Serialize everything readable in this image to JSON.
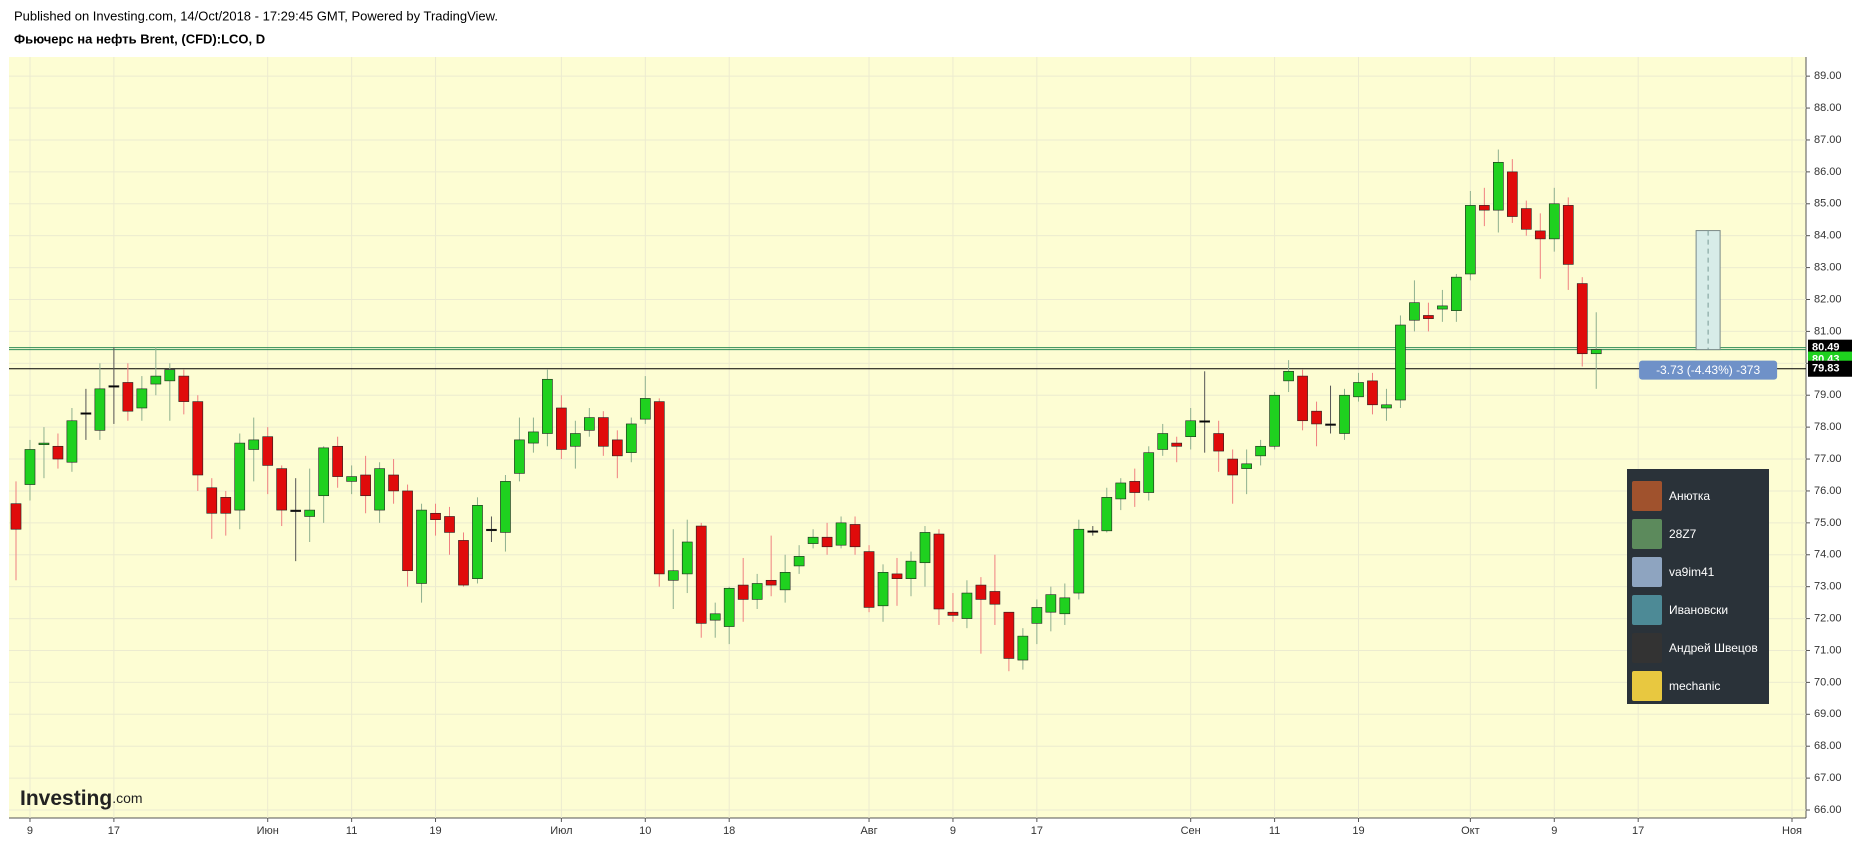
{
  "chart_data": {
    "type": "candlestick",
    "subtitle": "Published on Investing.com, 14/Oct/2018 - 17:29:45 GMT, Powered by TradingView.",
    "title": "Фьючерс на нефть Brent, (CFD):LCO, D",
    "watermark": {
      "brand": "Investing",
      "suffix": ".com"
    },
    "up_color": "#1fd11f",
    "down_color": "#e00b0b",
    "grid": true,
    "xlim": [
      -0.5,
      128
    ],
    "xticks": [
      {
        "value": 1,
        "label": "9"
      },
      {
        "value": 7,
        "label": "17"
      },
      {
        "value": 18,
        "label": "Июн"
      },
      {
        "value": 24,
        "label": "11"
      },
      {
        "value": 30,
        "label": "19"
      },
      {
        "value": 39,
        "label": "Июл"
      },
      {
        "value": 45,
        "label": "10"
      },
      {
        "value": 51,
        "label": "18"
      },
      {
        "value": 61,
        "label": "Авг"
      },
      {
        "value": 67,
        "label": "9"
      },
      {
        "value": 73,
        "label": "17"
      },
      {
        "value": 84,
        "label": "Сен"
      },
      {
        "value": 90,
        "label": "11"
      },
      {
        "value": 96,
        "label": "19"
      },
      {
        "value": 104,
        "label": "Окт"
      },
      {
        "value": 110,
        "label": "9"
      },
      {
        "value": 116,
        "label": "17"
      },
      {
        "value": 127,
        "label": "Ноя"
      }
    ],
    "ylim": [
      65.75,
      89.6
    ],
    "yticks": [
      {
        "value": 66,
        "label": "66.00"
      },
      {
        "value": 67,
        "label": "67.00"
      },
      {
        "value": 68,
        "label": "68.00"
      },
      {
        "value": 69,
        "label": "69.00"
      },
      {
        "value": 70,
        "label": "70.00"
      },
      {
        "value": 71,
        "label": "71.00"
      },
      {
        "value": 72,
        "label": "72.00"
      },
      {
        "value": 73,
        "label": "73.00"
      },
      {
        "value": 74,
        "label": "74.00"
      },
      {
        "value": 75,
        "label": "75.00"
      },
      {
        "value": 76,
        "label": "76.00"
      },
      {
        "value": 77,
        "label": "77.00"
      },
      {
        "value": 78,
        "label": "78.00"
      },
      {
        "value": 79,
        "label": "79.00"
      },
      {
        "value": 80,
        "label": "80.00"
      },
      {
        "value": 81,
        "label": "81.00"
      },
      {
        "value": 82,
        "label": "82.00"
      },
      {
        "value": 83,
        "label": "83.00"
      },
      {
        "value": 84,
        "label": "84.00"
      },
      {
        "value": 85,
        "label": "85.00"
      },
      {
        "value": 86,
        "label": "86.00"
      },
      {
        "value": 87,
        "label": "87.00"
      },
      {
        "value": 88,
        "label": "88.00"
      },
      {
        "value": 89,
        "label": "89.00"
      }
    ],
    "open": [
      75.6,
      76.2,
      77.45,
      77.4,
      76.9,
      78.45,
      77.9,
      79.3,
      79.4,
      78.6,
      79.35,
      79.45,
      79.6,
      78.8,
      76.1,
      75.8,
      75.4,
      77.3,
      77.7,
      76.7,
      75.4,
      75.2,
      75.85,
      77.4,
      76.3,
      76.5,
      75.4,
      76.5,
      76.0,
      73.1,
      75.3,
      75.2,
      74.45,
      73.25,
      74.8,
      74.7,
      76.55,
      77.5,
      77.8,
      78.6,
      77.4,
      77.9,
      78.3,
      77.6,
      77.2,
      78.25,
      78.8,
      73.2,
      73.4,
      74.9,
      71.95,
      71.75,
      73.05,
      72.6,
      73.2,
      72.9,
      73.65,
      74.35,
      74.55,
      74.3,
      74.95,
      74.1,
      72.4,
      73.4,
      73.25,
      73.75,
      74.65,
      72.2,
      72.0,
      73.05,
      72.85,
      72.2,
      70.7,
      71.85,
      72.2,
      72.15,
      72.8,
      74.75,
      74.75,
      75.75,
      76.3,
      75.95,
      77.3,
      77.5,
      77.7,
      78.2,
      77.8,
      77.0,
      76.7,
      77.1,
      77.4,
      79.45,
      79.6,
      78.5,
      78.1,
      77.8,
      78.95,
      79.45,
      78.6,
      78.85,
      81.35,
      81.5,
      81.7,
      81.65,
      82.8,
      84.95,
      84.8,
      86.0,
      84.85,
      84.15,
      83.9,
      84.95,
      82.5,
      80.3
    ],
    "high": [
      76.3,
      77.6,
      78.0,
      77.8,
      78.6,
      79.2,
      80.0,
      80.5,
      80.0,
      79.6,
      80.5,
      80.0,
      79.8,
      79.0,
      76.4,
      76.0,
      77.8,
      78.3,
      78.0,
      76.8,
      76.4,
      76.7,
      77.4,
      77.7,
      76.8,
      77.1,
      76.9,
      77.0,
      76.2,
      75.6,
      75.6,
      75.5,
      74.7,
      75.8,
      75.2,
      76.5,
      78.3,
      78.3,
      79.8,
      79.0,
      78.2,
      78.6,
      78.5,
      77.9,
      78.3,
      79.6,
      78.9,
      74.8,
      75.1,
      75.0,
      72.5,
      73.0,
      73.9,
      73.4,
      74.6,
      74.0,
      74.3,
      74.8,
      75.0,
      75.2,
      75.2,
      74.3,
      73.7,
      73.9,
      74.1,
      74.9,
      74.8,
      72.8,
      73.2,
      73.3,
      74.0,
      72.2,
      71.7,
      72.6,
      73.0,
      73.1,
      75.1,
      74.9,
      76.1,
      76.4,
      76.7,
      77.4,
      78.1,
      77.7,
      78.6,
      79.75,
      78.2,
      77.3,
      77.3,
      77.6,
      79.1,
      80.1,
      79.8,
      78.8,
      79.3,
      79.2,
      79.7,
      79.7,
      79.2,
      81.5,
      82.6,
      81.9,
      82.3,
      82.8,
      85.4,
      85.5,
      86.7,
      86.4,
      85.1,
      84.7,
      85.5,
      85.2,
      82.7,
      81.6
    ],
    "low": [
      73.2,
      75.7,
      76.4,
      76.7,
      76.6,
      77.6,
      77.6,
      78.1,
      78.2,
      78.2,
      79.0,
      78.2,
      78.4,
      76.0,
      74.5,
      74.6,
      74.8,
      76.3,
      75.9,
      74.9,
      73.8,
      74.4,
      75.0,
      76.1,
      75.9,
      75.3,
      75.0,
      75.6,
      73.0,
      72.5,
      74.6,
      74.0,
      73.0,
      73.1,
      74.4,
      74.1,
      76.3,
      77.2,
      77.4,
      77.0,
      76.7,
      77.7,
      77.1,
      76.4,
      76.9,
      78.1,
      73.0,
      72.3,
      72.8,
      71.4,
      71.4,
      71.2,
      71.9,
      72.3,
      72.7,
      72.5,
      73.4,
      74.2,
      74.0,
      74.2,
      74.0,
      72.2,
      71.9,
      72.4,
      72.7,
      73.0,
      71.8,
      71.9,
      71.7,
      70.9,
      71.8,
      70.35,
      70.4,
      71.2,
      71.6,
      71.8,
      72.6,
      74.6,
      74.7,
      75.4,
      75.5,
      75.7,
      77.1,
      76.9,
      77.3,
      77.2,
      76.6,
      75.6,
      75.9,
      76.8,
      77.3,
      79.1,
      77.9,
      77.4,
      77.8,
      77.6,
      78.8,
      78.4,
      78.2,
      78.6,
      81.0,
      81.0,
      81.3,
      81.3,
      82.6,
      84.3,
      84.1,
      84.4,
      84.0,
      82.65,
      83.5,
      82.3,
      79.9,
      79.2
    ],
    "close": [
      74.8,
      77.3,
      77.5,
      77.0,
      78.2,
      78.45,
      79.2,
      79.3,
      78.5,
      79.2,
      79.6,
      79.8,
      78.8,
      76.5,
      75.3,
      75.3,
      77.5,
      77.6,
      76.8,
      75.4,
      75.4,
      75.4,
      77.35,
      76.45,
      76.45,
      75.85,
      76.7,
      76.0,
      73.5,
      75.4,
      75.1,
      74.7,
      73.05,
      75.55,
      74.8,
      76.3,
      77.6,
      77.85,
      79.5,
      77.3,
      77.8,
      78.3,
      77.4,
      77.1,
      78.1,
      78.9,
      73.4,
      73.5,
      74.4,
      71.85,
      72.15,
      72.95,
      72.6,
      73.1,
      73.05,
      73.45,
      73.95,
      74.55,
      74.25,
      75.0,
      74.25,
      72.35,
      73.45,
      73.25,
      73.8,
      74.7,
      72.3,
      72.1,
      72.8,
      72.6,
      72.45,
      70.75,
      71.45,
      72.35,
      72.75,
      72.65,
      74.8,
      74.75,
      75.8,
      76.25,
      75.95,
      77.2,
      77.8,
      77.4,
      78.2,
      78.2,
      77.25,
      76.5,
      76.85,
      77.4,
      79.0,
      79.75,
      78.2,
      78.1,
      78.1,
      79.0,
      79.4,
      78.7,
      78.7,
      81.2,
      81.9,
      81.4,
      81.8,
      82.7,
      84.95,
      84.8,
      86.3,
      84.6,
      84.2,
      83.9,
      85.0,
      83.1,
      80.3,
      80.43
    ],
    "price_lines": [
      {
        "value": 80.49,
        "color": "#000000",
        "line": "#2e8b57"
      },
      {
        "value": 80.43,
        "color": "#1fd11f",
        "line": "#2e8b57"
      },
      {
        "value": 79.83,
        "color": "#000000",
        "line": "#000000"
      }
    ],
    "measure": {
      "x": 121,
      "from": 84.16,
      "to": 80.43,
      "label": "-3.73 (-4.43%) -373"
    }
  },
  "chat_panel": {
    "users": [
      "Анютка",
      "28Z7",
      "va9im41",
      "Ивановски",
      "Андрей Швецов",
      "mechanic"
    ]
  }
}
